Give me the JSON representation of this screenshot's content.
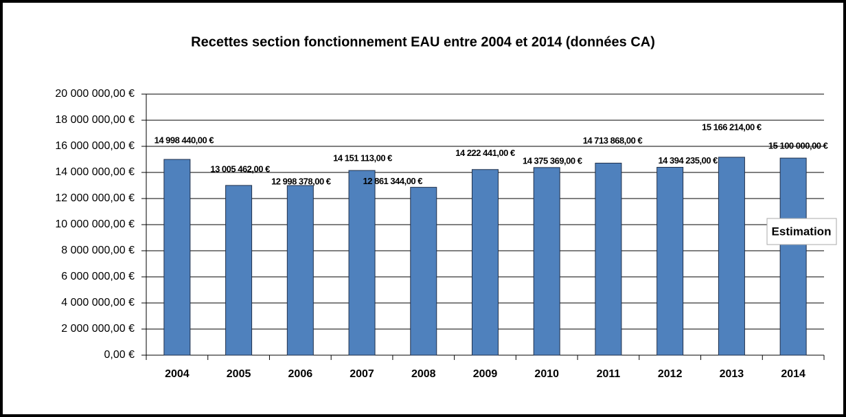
{
  "chart_data": {
    "type": "bar",
    "title": "Recettes section fonctionnement EAU entre 2004 et 2014 (données CA)",
    "categories": [
      "2004",
      "2005",
      "2006",
      "2007",
      "2008",
      "2009",
      "2010",
      "2011",
      "2012",
      "2013",
      "2014"
    ],
    "values": [
      14998440,
      13005462,
      12998378,
      14151113,
      12861344,
      14222441,
      14375369,
      14713868,
      14394235,
      15166214,
      15100000
    ],
    "value_labels": [
      "14 998 440,00 €",
      "13 005 462,00 €",
      "12 998 378,00 €",
      "14 151 113,00 €",
      "12 861 344,00 €",
      "14 222 441,00 €",
      "14 375 369,00 €",
      "14 713 868,00 €",
      "14 394 235,00 €",
      "15 166 214,00 €",
      "15 100 000,00 €"
    ],
    "color": "#4f81bd",
    "ylim": [
      0,
      20000000
    ],
    "yticks": [
      {
        "value": 0,
        "label": "0,00 €"
      },
      {
        "value": 2000000,
        "label": "2 000 000,00 €"
      },
      {
        "value": 4000000,
        "label": "4 000 000,00 €"
      },
      {
        "value": 6000000,
        "label": "6 000 000,00 €"
      },
      {
        "value": 8000000,
        "label": "8 000 000,00 €"
      },
      {
        "value": 10000000,
        "label": "10 000 000,00 €"
      },
      {
        "value": 12000000,
        "label": "12 000 000,00 €"
      },
      {
        "value": 14000000,
        "label": "14 000 000,00 €"
      },
      {
        "value": 16000000,
        "label": "16 000 000,00 €"
      },
      {
        "value": 18000000,
        "label": "18 000 000,00 €"
      },
      {
        "value": 20000000,
        "label": "20 000 000,00 €"
      }
    ],
    "grid": true,
    "annotation": "Estimation"
  }
}
